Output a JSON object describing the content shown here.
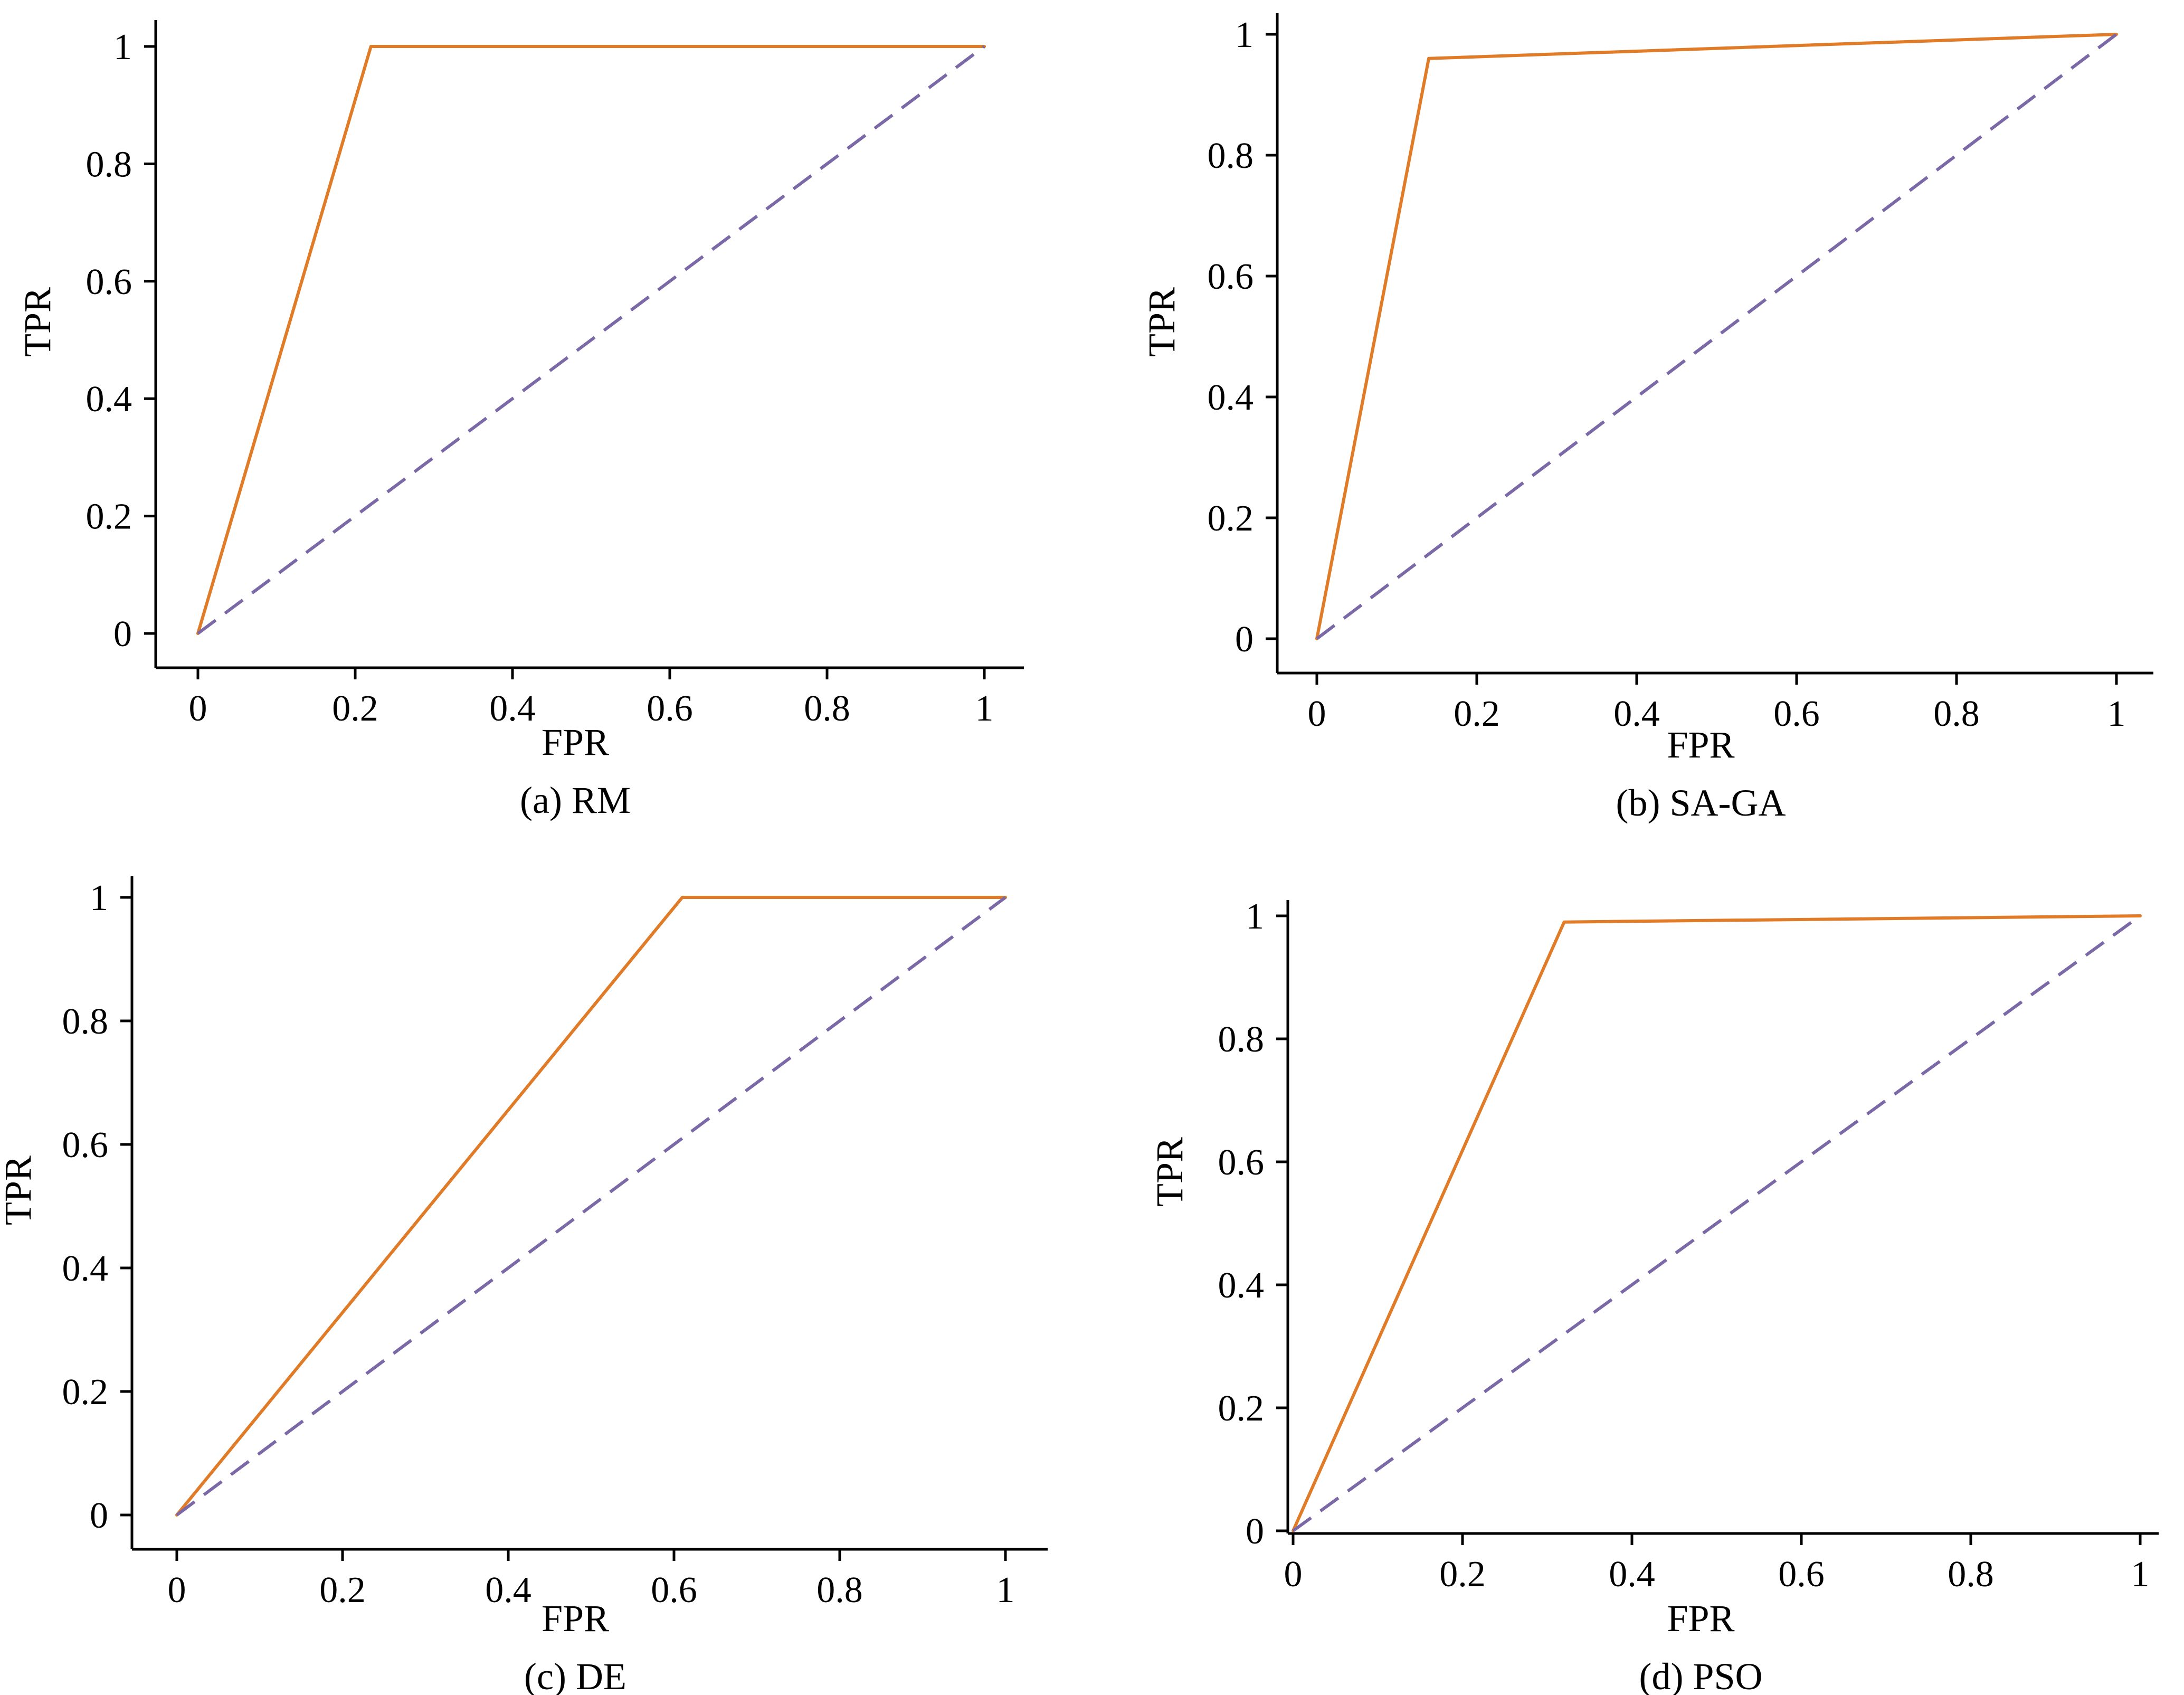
{
  "chart_data": [
    {
      "type": "line",
      "caption": "(a) RM",
      "xlabel": "FPR",
      "ylabel": "TPR",
      "xlim": [
        0,
        1
      ],
      "ylim": [
        0,
        1
      ],
      "x_ticks": [
        "0",
        "0.2",
        "0.4",
        "0.6",
        "0.8",
        "1"
      ],
      "y_ticks": [
        "0",
        "0.2",
        "0.4",
        "0.6",
        "0.8",
        "1"
      ],
      "grid": false,
      "series": [
        {
          "color": "#E07B28",
          "style": "solid",
          "x": [
            0,
            0.22,
            1
          ],
          "y": [
            0,
            1,
            1
          ]
        },
        {
          "color": "#7B68A6",
          "style": "dashed",
          "x": [
            0,
            1
          ],
          "y": [
            0,
            1
          ]
        }
      ]
    },
    {
      "type": "line",
      "caption": "(b) SA-GA",
      "xlabel": "FPR",
      "ylabel": "TPR",
      "xlim": [
        0,
        1
      ],
      "ylim": [
        0,
        1
      ],
      "x_ticks": [
        "0",
        "0.2",
        "0.4",
        "0.6",
        "0.8",
        "1"
      ],
      "y_ticks": [
        "0",
        "0.2",
        "0.4",
        "0.6",
        "0.8",
        "1"
      ],
      "grid": false,
      "series": [
        {
          "color": "#E07B28",
          "style": "solid",
          "x": [
            0,
            0.14,
            1
          ],
          "y": [
            0,
            0.96,
            1
          ]
        },
        {
          "color": "#7B68A6",
          "style": "dashed",
          "x": [
            0,
            1
          ],
          "y": [
            0,
            1
          ]
        }
      ]
    },
    {
      "type": "line",
      "caption": "(c) DE",
      "xlabel": "FPR",
      "ylabel": "TPR",
      "xlim": [
        0,
        1
      ],
      "ylim": [
        0,
        1
      ],
      "x_ticks": [
        "0",
        "0.2",
        "0.4",
        "0.6",
        "0.8",
        "1"
      ],
      "y_ticks": [
        "0",
        "0.2",
        "0.4",
        "0.6",
        "0.8",
        "1"
      ],
      "grid": false,
      "series": [
        {
          "color": "#E07B28",
          "style": "solid",
          "x": [
            0,
            0.61,
            1
          ],
          "y": [
            0,
            1,
            1
          ]
        },
        {
          "color": "#7B68A6",
          "style": "dashed",
          "x": [
            0,
            1
          ],
          "y": [
            0,
            1
          ]
        }
      ]
    },
    {
      "type": "line",
      "caption": "(d) PSO",
      "xlabel": "FPR",
      "ylabel": "TPR",
      "xlim": [
        0,
        1
      ],
      "ylim": [
        0,
        1
      ],
      "x_ticks": [
        "0",
        "0.2",
        "0.4",
        "0.6",
        "0.8",
        "1"
      ],
      "y_ticks": [
        "0",
        "0.2",
        "0.4",
        "0.6",
        "0.8",
        "1"
      ],
      "grid": false,
      "series": [
        {
          "color": "#E07B28",
          "style": "solid",
          "x": [
            0,
            0.32,
            1
          ],
          "y": [
            0,
            0.99,
            1
          ]
        },
        {
          "color": "#7B68A6",
          "style": "dashed",
          "x": [
            0,
            1
          ],
          "y": [
            0,
            1
          ]
        }
      ]
    }
  ]
}
